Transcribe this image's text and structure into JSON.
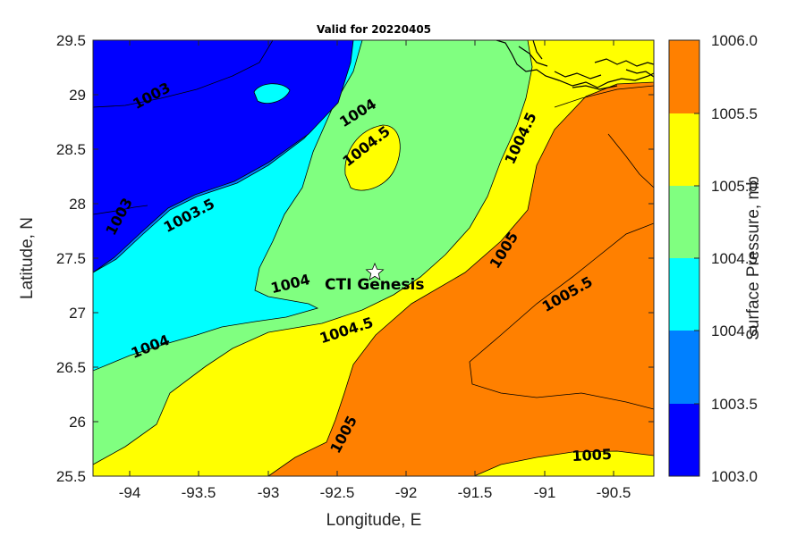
{
  "title": "Valid for 20220405",
  "xlabel": "Longitude, E",
  "ylabel": "Latitude, N",
  "colorbar_label": "Surface Pressure, mb",
  "x_ticks": [
    "-94",
    "-93.5",
    "-93",
    "-92.5",
    "-92",
    "-91.5",
    "-91",
    "-90.5"
  ],
  "y_ticks": [
    "29.5",
    "29",
    "28.5",
    "28",
    "27.5",
    "27",
    "26.5",
    "26",
    "25.5"
  ],
  "colorbar_ticks": [
    "1006.0",
    "1005.5",
    "1005.0",
    "1004.5",
    "1004.0",
    "1003.5",
    "1003.0"
  ],
  "colorbar_levels": [
    {
      "range": "1003.0-1003.5",
      "color": "#0000ff"
    },
    {
      "range": "1003.5-1004.0",
      "color": "#0080ff"
    },
    {
      "range": "1004.0-1004.5",
      "color": "#00ffff"
    },
    {
      "range": "1004.5-1005.0",
      "color": "#80ff80"
    },
    {
      "range": "1005.0-1005.5",
      "color": "#ffff00"
    },
    {
      "range": "1005.5-1006.0",
      "color": "#ff8000"
    }
  ],
  "contour_labels": [
    "1003",
    "1003",
    "1003.5",
    "1004",
    "1004",
    "1004",
    "1004.5",
    "1004.5",
    "1004.5",
    "1005",
    "1005",
    "1005.5",
    "1005"
  ],
  "marker": {
    "label": "CTI Genesis",
    "lon": -92.25,
    "lat": 27.38,
    "symbol": "star"
  },
  "map_extent": {
    "lon": [
      -94.3,
      -90.25
    ],
    "lat": [
      25.5,
      29.5
    ]
  }
}
